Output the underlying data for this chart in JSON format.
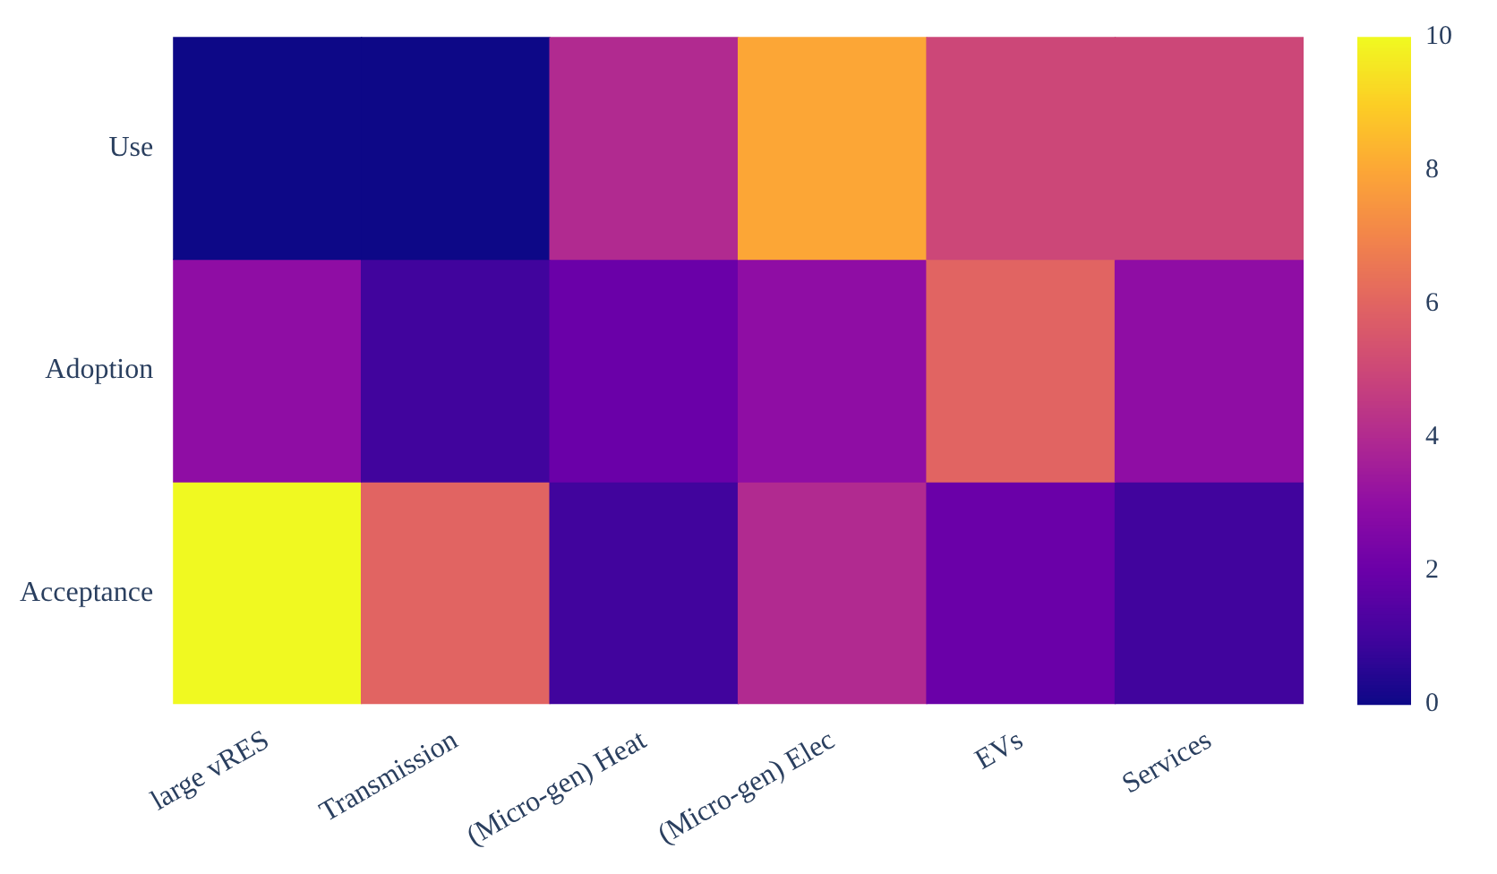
{
  "chart_data": {
    "type": "heatmap",
    "categories": [
      "large vRES",
      "Transmission",
      "(Micro-gen) Heat",
      "(Micro-gen) Elec",
      "EVs",
      "Services"
    ],
    "y_categories": [
      "Use",
      "Adoption",
      "Acceptance"
    ],
    "cells": [
      [
        0,
        0,
        4,
        8,
        5,
        5
      ],
      [
        3,
        1,
        2,
        3,
        6,
        3
      ],
      [
        10,
        6,
        1,
        4,
        2,
        1
      ]
    ],
    "clim": [
      0,
      10
    ],
    "cticks": [
      0,
      2,
      4,
      6,
      8,
      10
    ]
  }
}
